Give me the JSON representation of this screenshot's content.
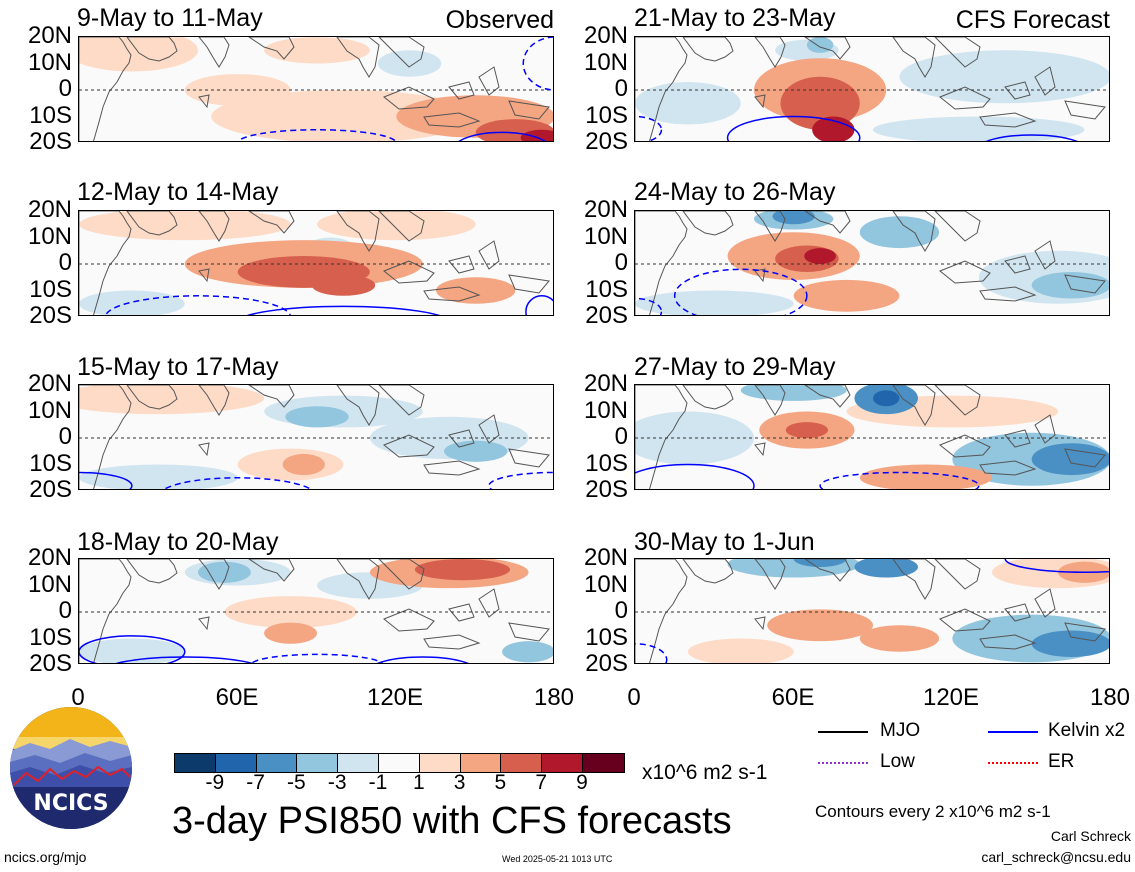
{
  "observed_label": "Observed",
  "forecast_label": "CFS Forecast",
  "lat_labels": [
    "20N",
    "10N",
    "0",
    "10S",
    "20S"
  ],
  "lon_labels": [
    "0",
    "60E",
    "120E",
    "180"
  ],
  "chart_data": [
    {
      "type": "heatmap",
      "title": "9-May to 11-May",
      "column": "Observed",
      "xlim": [
        0,
        180
      ],
      "ylim": [
        -20,
        20
      ]
    },
    {
      "type": "heatmap",
      "title": "12-May to 14-May",
      "column": "Observed",
      "xlim": [
        0,
        180
      ],
      "ylim": [
        -20,
        20
      ]
    },
    {
      "type": "heatmap",
      "title": "15-May to 17-May",
      "column": "Observed",
      "xlim": [
        0,
        180
      ],
      "ylim": [
        -20,
        20
      ]
    },
    {
      "type": "heatmap",
      "title": "18-May to 20-May",
      "column": "Observed",
      "xlim": [
        0,
        180
      ],
      "ylim": [
        -20,
        20
      ]
    },
    {
      "type": "heatmap",
      "title": "21-May to 23-May",
      "column": "CFS Forecast",
      "xlim": [
        0,
        180
      ],
      "ylim": [
        -20,
        20
      ]
    },
    {
      "type": "heatmap",
      "title": "24-May to 26-May",
      "column": "CFS Forecast",
      "xlim": [
        0,
        180
      ],
      "ylim": [
        -20,
        20
      ]
    },
    {
      "type": "heatmap",
      "title": "27-May to 29-May",
      "column": "CFS Forecast",
      "xlim": [
        0,
        180
      ],
      "ylim": [
        -20,
        20
      ]
    },
    {
      "type": "heatmap",
      "title": "30-May to 1-Jun",
      "column": "CFS Forecast",
      "xlim": [
        0,
        180
      ],
      "ylim": [
        -20,
        20
      ]
    }
  ],
  "colorbar": {
    "labels": [
      "-9",
      "-7",
      "-5",
      "-3",
      "-1",
      "1",
      "3",
      "5",
      "7",
      "9"
    ],
    "colors": [
      "#0b3a6b",
      "#2166ac",
      "#4a90c5",
      "#92c5de",
      "#d1e5f0",
      "#fafafa",
      "#fddbc7",
      "#f4a582",
      "#d6604d",
      "#b2182b",
      "#67001f"
    ],
    "units": "x10^6 m2 s-1"
  },
  "title": "3-day PSI850 with CFS forecasts",
  "legend": [
    {
      "label": "MJO",
      "color": "#000000"
    },
    {
      "label": "Kelvin x2",
      "color": "#0000ff"
    },
    {
      "label": "Low",
      "color": "#9933cc"
    },
    {
      "label": "ER",
      "color": "#ff0000"
    }
  ],
  "contour_note": "Contours every 2 x10^6 m2 s-1",
  "author": "Carl Schreck",
  "email": "carl_schreck@ncsu.edu",
  "url": "ncics.org/mjo",
  "timestamp": "Wed 2025-05-21 1013 UTC",
  "logo_text": "NCICS"
}
